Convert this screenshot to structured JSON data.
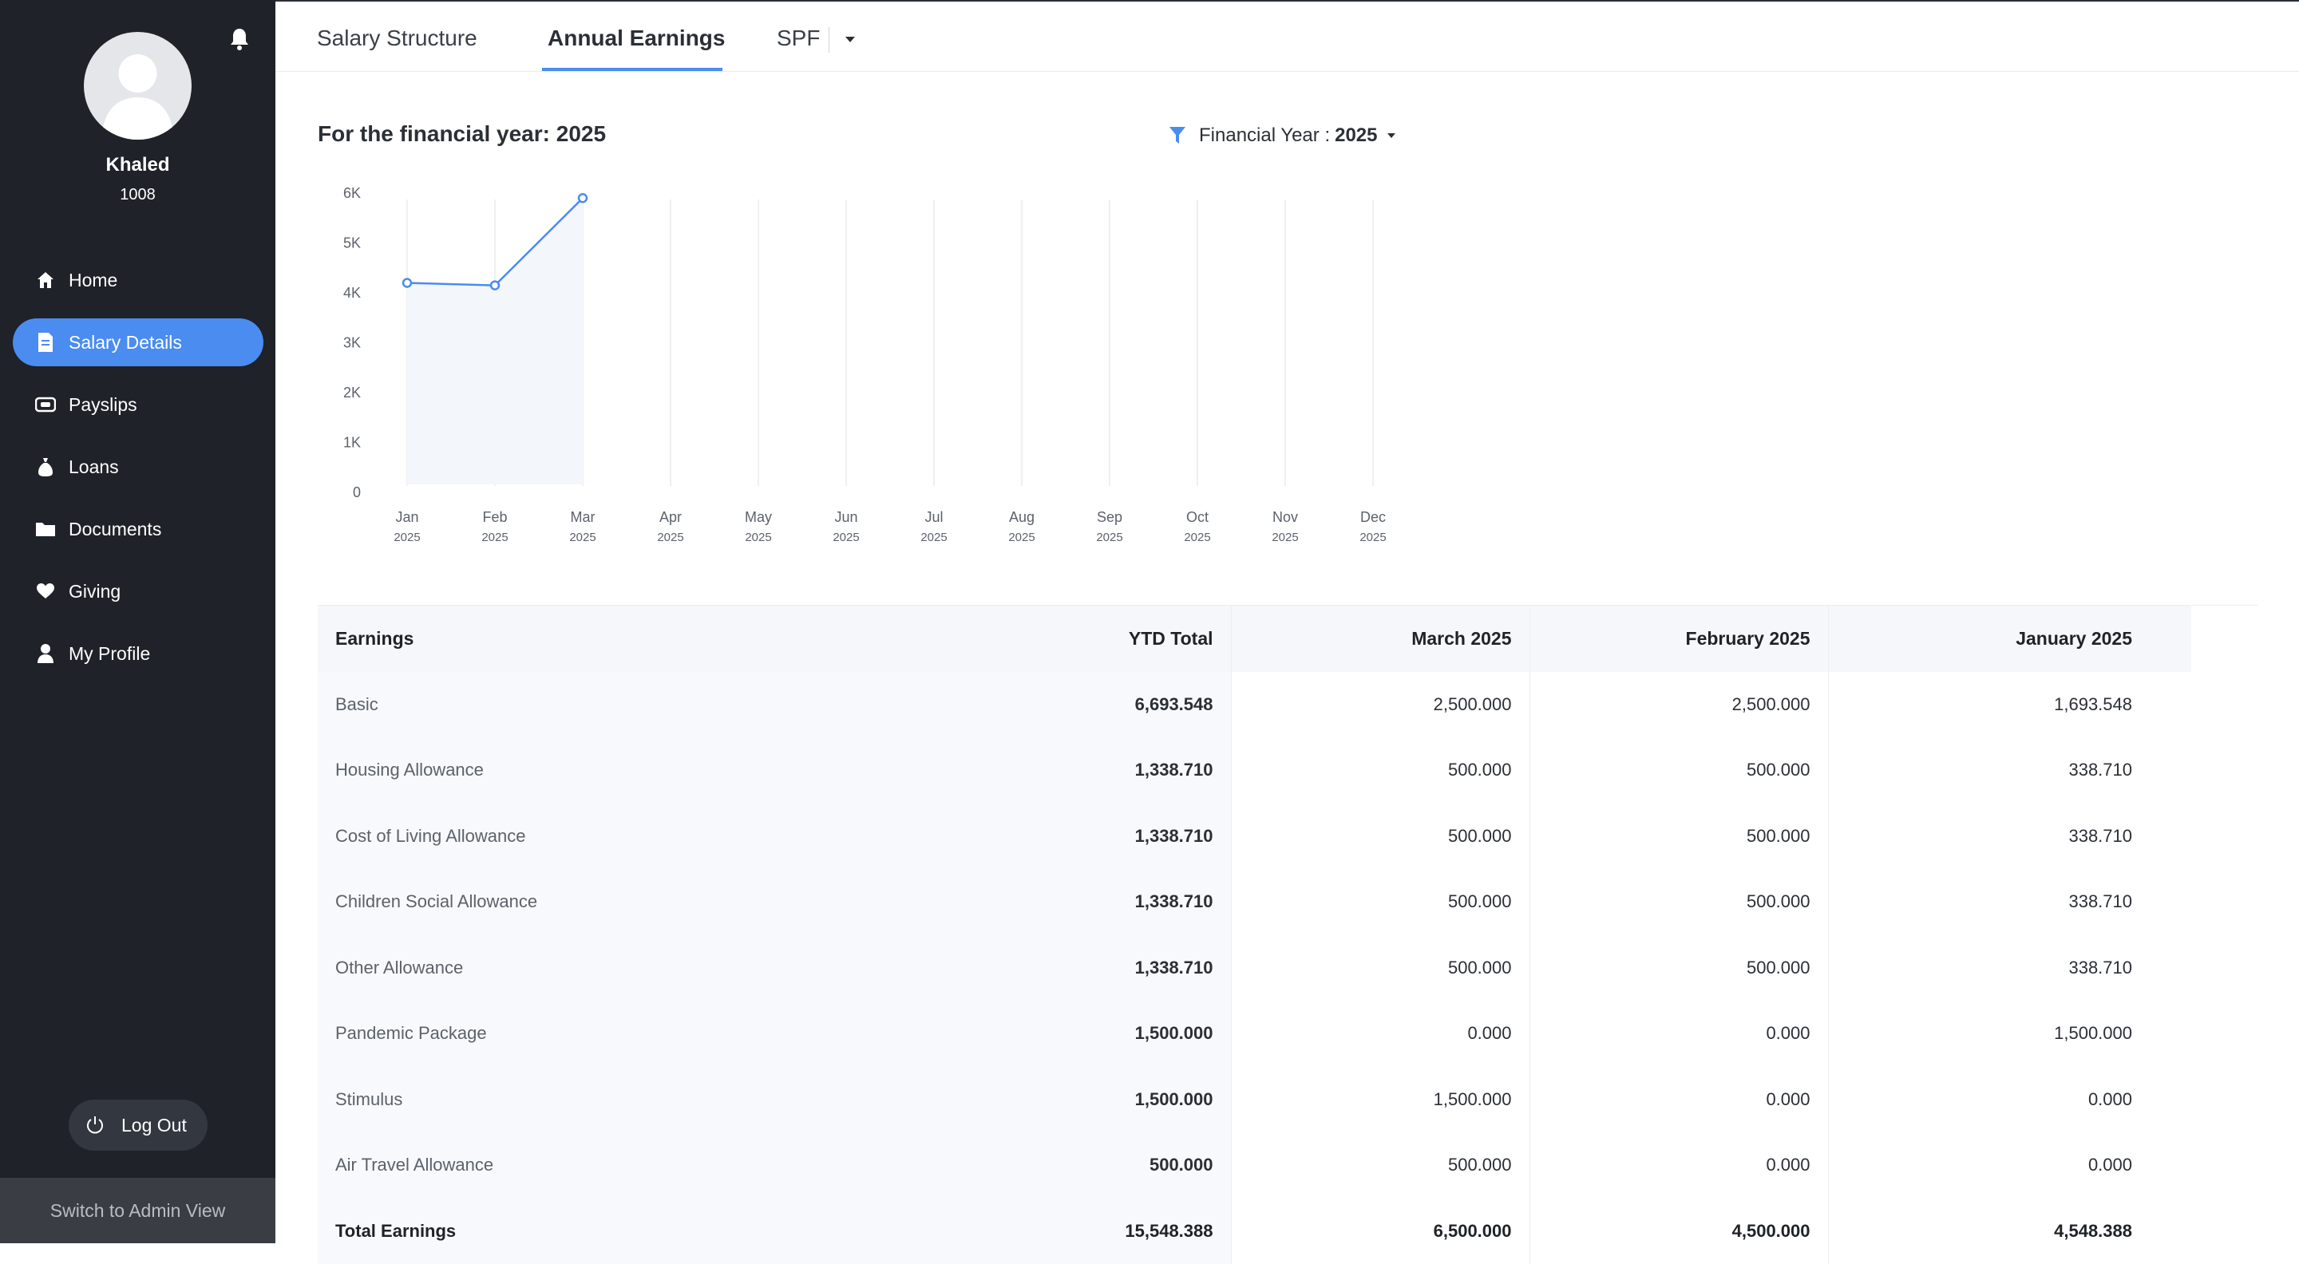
{
  "user": {
    "name": "Khaled",
    "id": "1008"
  },
  "sidebar": {
    "items": [
      {
        "label": "Home",
        "icon": "home-icon",
        "active": false
      },
      {
        "label": "Salary Details",
        "icon": "document-icon",
        "active": true
      },
      {
        "label": "Payslips",
        "icon": "ticket-icon",
        "active": false
      },
      {
        "label": "Loans",
        "icon": "money-bag-icon",
        "active": false
      },
      {
        "label": "Documents",
        "icon": "folder-icon",
        "active": false
      },
      {
        "label": "Giving",
        "icon": "heart-icon",
        "active": false
      },
      {
        "label": "My Profile",
        "icon": "person-icon",
        "active": false
      }
    ],
    "logout_label": "Log Out",
    "admin_switch_label": "Switch to Admin View"
  },
  "tabs": [
    {
      "label": "Salary Structure",
      "active": false
    },
    {
      "label": "Annual Earnings",
      "active": true
    },
    {
      "label": "SPF",
      "active": false
    }
  ],
  "header": {
    "title": "For the financial year: 2025",
    "filter_label": "Financial Year :",
    "filter_value": "2025"
  },
  "colors": {
    "sidebar_bg": "#1f2228",
    "accent": "#4a8cf0",
    "line": "#4a8cf0"
  },
  "chart_data": {
    "type": "line",
    "categories": [
      "Jan",
      "Feb",
      "Mar",
      "Apr",
      "May",
      "Jun",
      "Jul",
      "Aug",
      "Sep",
      "Oct",
      "Nov",
      "Dec"
    ],
    "category_sublabel": "2025",
    "values": [
      4200,
      4150,
      5900,
      null,
      null,
      null,
      null,
      null,
      null,
      null,
      null,
      null
    ],
    "y_ticks": [
      "0",
      "1K",
      "2K",
      "3K",
      "4K",
      "5K",
      "6K"
    ],
    "ylim": [
      0,
      6000
    ],
    "grid": "vertical"
  },
  "table": {
    "headers": [
      "Earnings",
      "YTD Total",
      "March 2025",
      "February 2025",
      "January 2025"
    ],
    "rows": [
      [
        "Basic",
        "6,693.548",
        "2,500.000",
        "2,500.000",
        "1,693.548"
      ],
      [
        "Housing Allowance",
        "1,338.710",
        "500.000",
        "500.000",
        "338.710"
      ],
      [
        "Cost of Living Allowance",
        "1,338.710",
        "500.000",
        "500.000",
        "338.710"
      ],
      [
        "Children Social Allowance",
        "1,338.710",
        "500.000",
        "500.000",
        "338.710"
      ],
      [
        "Other Allowance",
        "1,338.710",
        "500.000",
        "500.000",
        "338.710"
      ],
      [
        "Pandemic Package",
        "1,500.000",
        "0.000",
        "0.000",
        "1,500.000"
      ],
      [
        "Stimulus",
        "1,500.000",
        "1,500.000",
        "0.000",
        "0.000"
      ],
      [
        "Air Travel Allowance",
        "500.000",
        "500.000",
        "0.000",
        "0.000"
      ]
    ],
    "total": [
      "Total Earnings",
      "15,548.388",
      "6,500.000",
      "4,500.000",
      "4,548.388"
    ]
  }
}
